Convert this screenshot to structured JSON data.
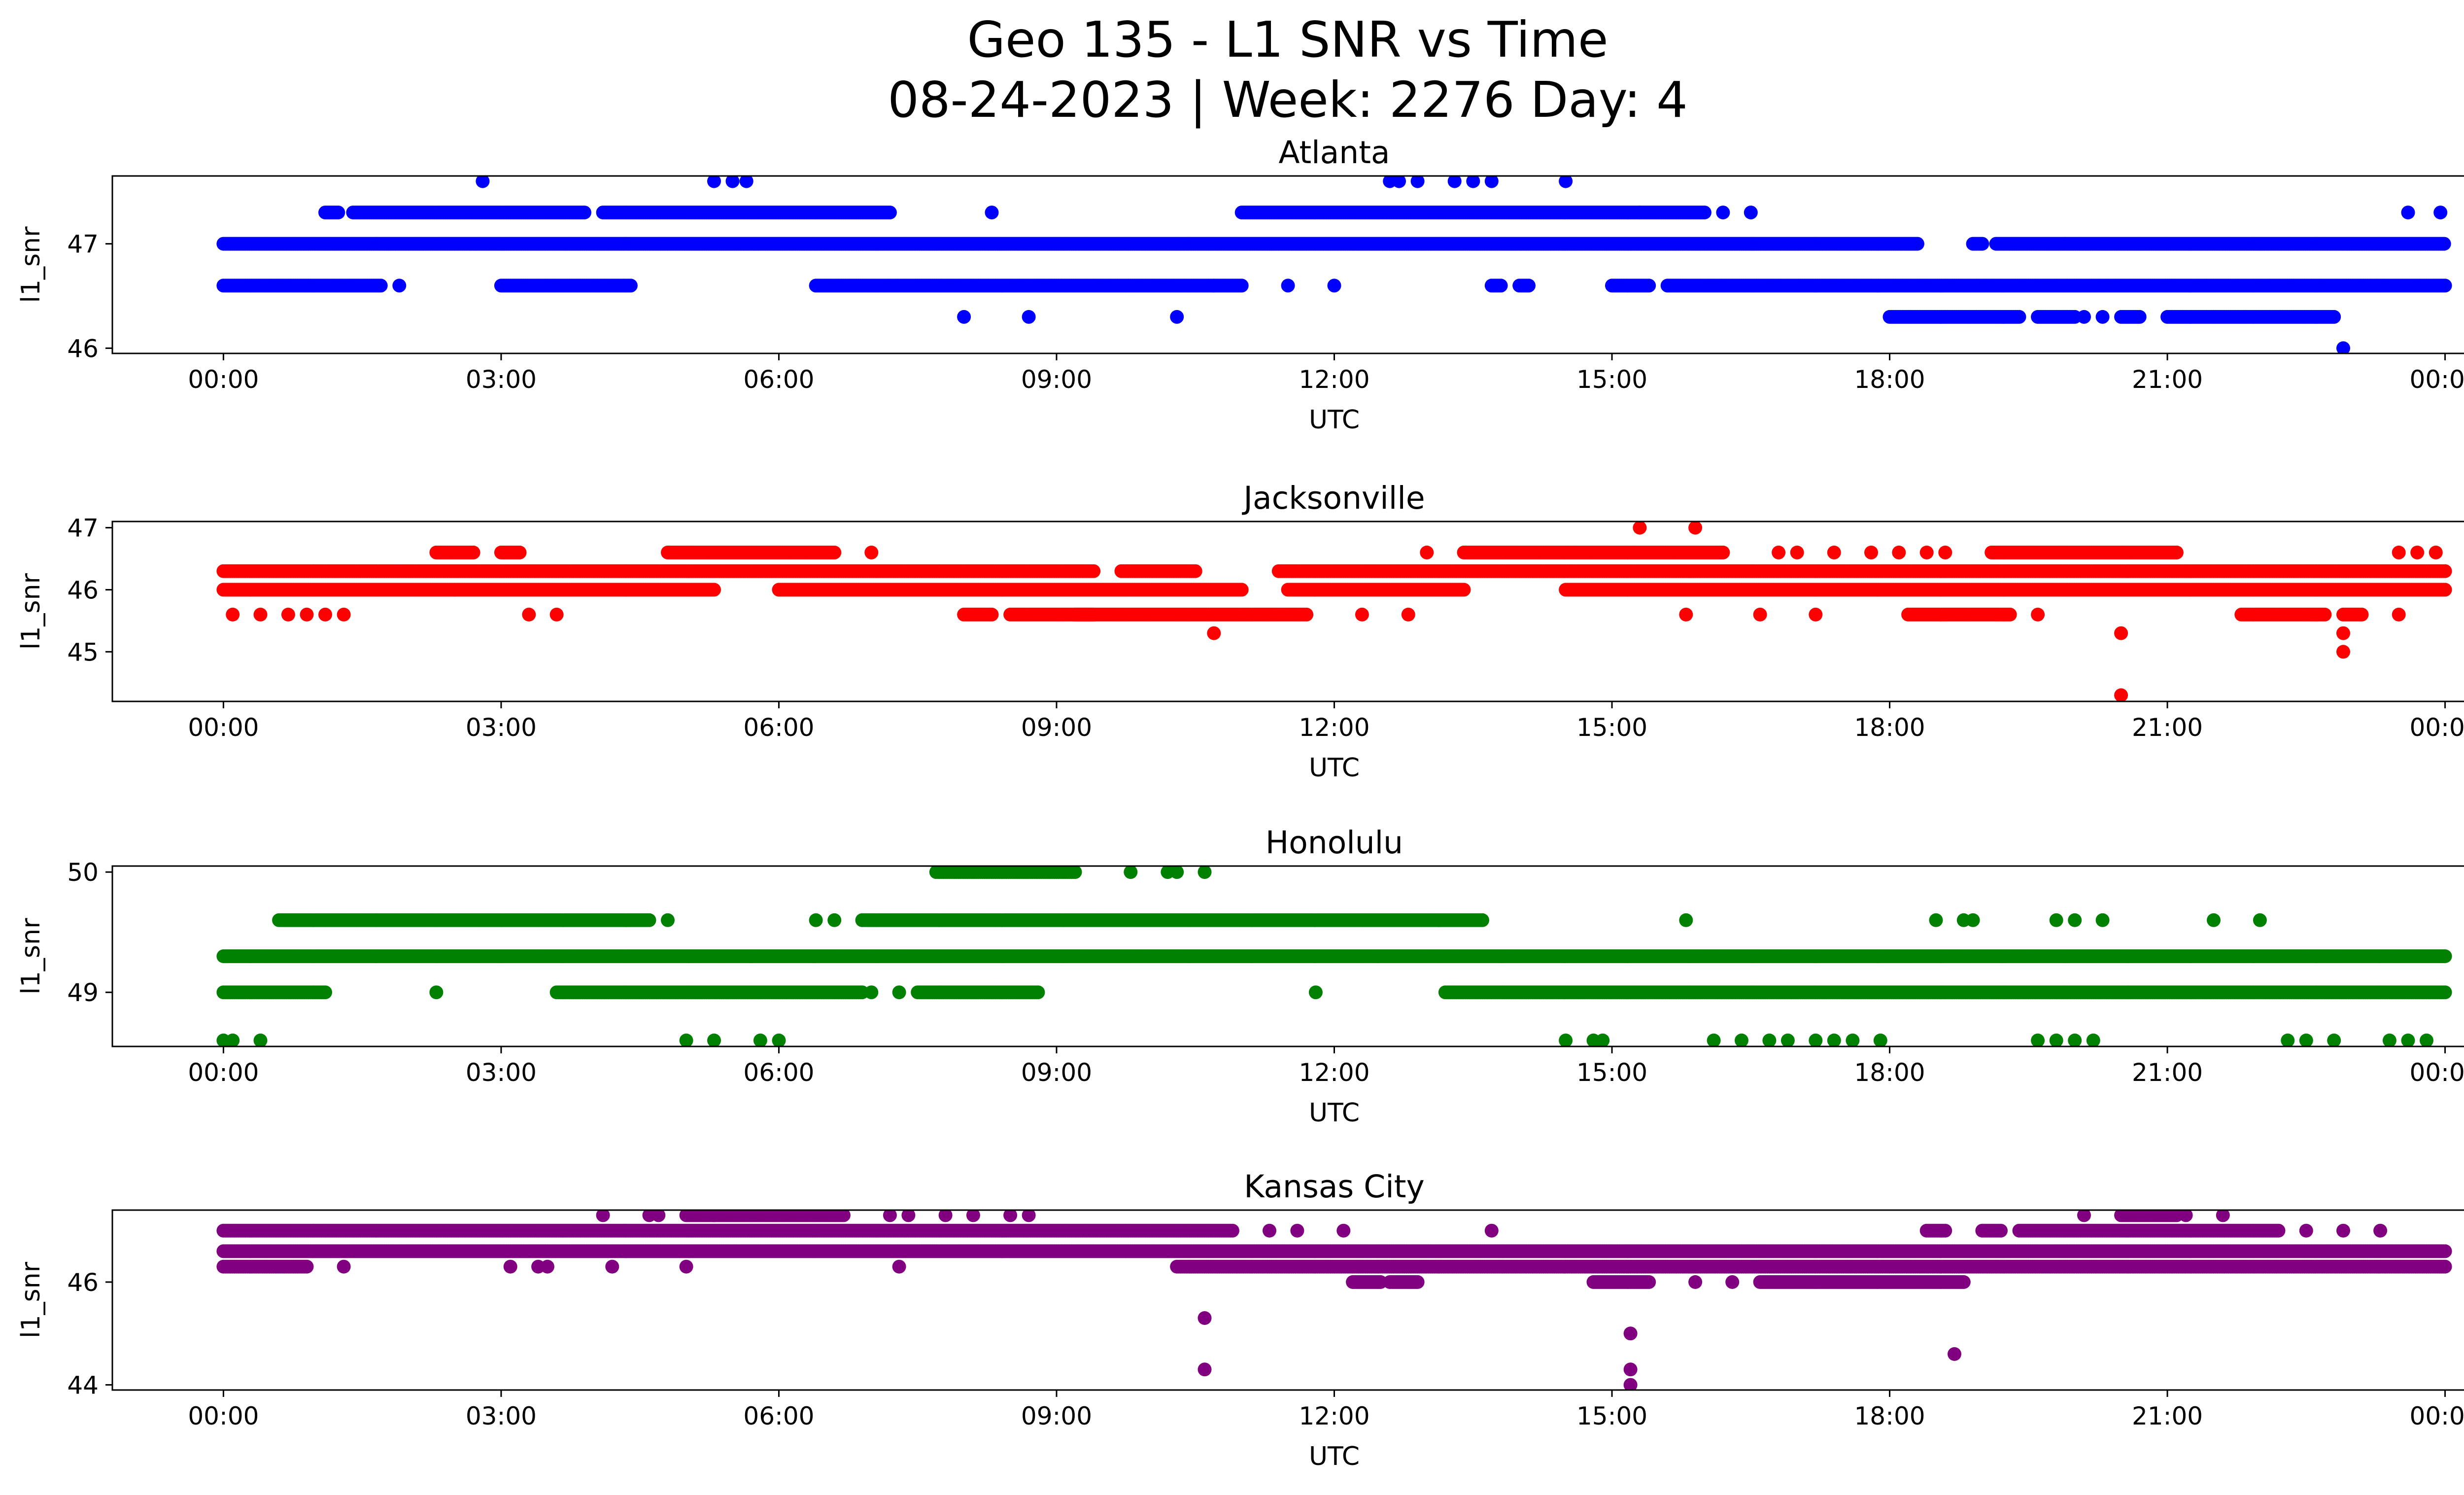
{
  "figure": {
    "title_line1": "Geo 135 - L1 SNR vs Time",
    "title_line2": "08-24-2023 | Week: 2276 Day: 4"
  },
  "chart_data": [
    {
      "type": "scatter",
      "title": "Atlanta",
      "xlabel": "UTC",
      "ylabel": "l1_snr",
      "color": "#0000ff",
      "xlim_hours": [
        -1.2,
        25.2
      ],
      "ylim": [
        45.95,
        47.65
      ],
      "yticks": [
        46,
        47
      ],
      "ytick_labels": [
        "46",
        "47"
      ],
      "xticks_hours": [
        0,
        3,
        6,
        9,
        12,
        15,
        18,
        21,
        24
      ],
      "xtick_labels": [
        "00:00",
        "03:00",
        "06:00",
        "09:00",
        "12:00",
        "15:00",
        "18:00",
        "21:00",
        "00:00"
      ],
      "series": [
        {
          "bands": [
            {
              "y": 47.0,
              "segments": [
                [
                  0.0,
                  18.3
                ],
                [
                  18.9,
                  19.0
                ],
                [
                  19.15,
                  24.0
                ]
              ]
            },
            {
              "y": 46.6,
              "segments": [
                [
                  0.0,
                  1.7
                ],
                [
                  3.0,
                  4.4
                ],
                [
                  6.4,
                  11.0
                ],
                [
                  13.7,
                  13.8
                ],
                [
                  14.0,
                  14.1
                ],
                [
                  15.0,
                  15.4
                ],
                [
                  15.6,
                  24.0
                ]
              ]
            },
            {
              "y": 47.3,
              "segments": [
                [
                  1.1,
                  1.25
                ],
                [
                  1.4,
                  3.9
                ],
                [
                  4.1,
                  7.2
                ],
                [
                  11.0,
                  15.3
                ],
                [
                  15.3,
                  16.0
                ]
              ]
            },
            {
              "y": 46.3,
              "segments": [
                [
                  18.0,
                  19.4
                ],
                [
                  19.6,
                  20.0
                ],
                [
                  20.5,
                  20.7
                ],
                [
                  21.0,
                  22.8
                ]
              ]
            }
          ],
          "points": [
            [
              1.9,
              46.6
            ],
            [
              2.8,
              47.6
            ],
            [
              5.3,
              47.6
            ],
            [
              5.5,
              47.6
            ],
            [
              5.65,
              47.6
            ],
            [
              8.3,
              47.3
            ],
            [
              8.0,
              46.3
            ],
            [
              8.7,
              46.3
            ],
            [
              10.3,
              46.3
            ],
            [
              10.7,
              46.6
            ],
            [
              11.5,
              46.6
            ],
            [
              12.0,
              46.6
            ],
            [
              12.6,
              47.6
            ],
            [
              12.7,
              47.6
            ],
            [
              12.9,
              47.6
            ],
            [
              13.3,
              47.6
            ],
            [
              13.5,
              47.6
            ],
            [
              13.7,
              47.6
            ],
            [
              14.5,
              47.6
            ],
            [
              16.2,
              47.3
            ],
            [
              16.5,
              47.3
            ],
            [
              20.1,
              46.3
            ],
            [
              20.3,
              46.3
            ],
            [
              22.9,
              46.0
            ],
            [
              23.6,
              47.3
            ],
            [
              23.95,
              47.3
            ]
          ]
        }
      ]
    },
    {
      "type": "scatter",
      "title": "Jacksonville",
      "xlabel": "UTC",
      "ylabel": "l1_snr",
      "color": "#ff0000",
      "xlim_hours": [
        -1.2,
        25.2
      ],
      "ylim": [
        44.2,
        47.1
      ],
      "yticks": [
        45,
        46,
        47
      ],
      "ytick_labels": [
        "45",
        "46",
        "47"
      ],
      "xticks_hours": [
        0,
        3,
        6,
        9,
        12,
        15,
        18,
        21,
        24
      ],
      "xtick_labels": [
        "00:00",
        "03:00",
        "06:00",
        "09:00",
        "12:00",
        "15:00",
        "18:00",
        "21:00",
        "00:00"
      ],
      "series": [
        {
          "bands": [
            {
              "y": 46.3,
              "segments": [
                [
                  0.0,
                  9.4
                ],
                [
                  9.7,
                  10.5
                ],
                [
                  11.4,
                  24.0
                ]
              ]
            },
            {
              "y": 46.0,
              "segments": [
                [
                  0.0,
                  2.5
                ],
                [
                  2.5,
                  5.3
                ],
                [
                  6.0,
                  11.0
                ],
                [
                  11.5,
                  13.4
                ],
                [
                  14.5,
                  24.0
                ]
              ]
            },
            {
              "y": 46.6,
              "segments": [
                [
                  2.3,
                  2.7
                ],
                [
                  3.0,
                  3.2
                ],
                [
                  4.8,
                  6.6
                ],
                [
                  13.4,
                  16.2
                ],
                [
                  19.1,
                  21.1
                ]
              ]
            },
            {
              "y": 45.6,
              "segments": [
                [
                  8.0,
                  8.3
                ],
                [
                  8.5,
                  9.4
                ],
                [
                  9.2,
                  11.7
                ],
                [
                  18.2,
                  19.3
                ],
                [
                  21.8,
                  22.7
                ],
                [
                  22.9,
                  23.1
                ]
              ]
            }
          ],
          "points": [
            [
              0.1,
              45.6
            ],
            [
              0.4,
              45.6
            ],
            [
              0.7,
              45.6
            ],
            [
              0.9,
              45.6
            ],
            [
              1.1,
              45.6
            ],
            [
              1.3,
              45.6
            ],
            [
              3.3,
              45.6
            ],
            [
              3.6,
              45.6
            ],
            [
              7.0,
              46.6
            ],
            [
              10.7,
              45.3
            ],
            [
              12.3,
              45.6
            ],
            [
              12.8,
              45.6
            ],
            [
              13.0,
              46.6
            ],
            [
              15.3,
              47.0
            ],
            [
              15.9,
              47.0
            ],
            [
              15.8,
              45.6
            ],
            [
              16.6,
              45.6
            ],
            [
              17.2,
              45.6
            ],
            [
              16.8,
              46.6
            ],
            [
              17.0,
              46.6
            ],
            [
              17.4,
              46.6
            ],
            [
              17.8,
              46.6
            ],
            [
              18.1,
              46.6
            ],
            [
              18.4,
              46.6
            ],
            [
              18.6,
              46.6
            ],
            [
              19.6,
              45.6
            ],
            [
              20.5,
              45.3
            ],
            [
              20.5,
              44.3
            ],
            [
              22.9,
              45.3
            ],
            [
              22.9,
              45.0
            ],
            [
              23.5,
              46.6
            ],
            [
              23.7,
              46.6
            ],
            [
              23.9,
              46.6
            ],
            [
              23.5,
              45.6
            ]
          ]
        }
      ]
    },
    {
      "type": "scatter",
      "title": "Honolulu",
      "xlabel": "UTC",
      "ylabel": "l1_snr",
      "color": "#008000",
      "xlim_hours": [
        -1.2,
        25.2
      ],
      "ylim": [
        48.55,
        50.05
      ],
      "yticks": [
        49,
        50
      ],
      "ytick_labels": [
        "49",
        "50"
      ],
      "xticks_hours": [
        0,
        3,
        6,
        9,
        12,
        15,
        18,
        21,
        24
      ],
      "xtick_labels": [
        "00:00",
        "03:00",
        "06:00",
        "09:00",
        "12:00",
        "15:00",
        "18:00",
        "21:00",
        "00:00"
      ],
      "series": [
        {
          "bands": [
            {
              "y": 49.3,
              "segments": [
                [
                  0.0,
                  24.0
                ]
              ]
            },
            {
              "y": 49.0,
              "segments": [
                [
                  0.0,
                  1.1
                ],
                [
                  3.6,
                  6.9
                ],
                [
                  7.5,
                  8.8
                ],
                [
                  13.2,
                  24.0
                ]
              ]
            },
            {
              "y": 49.6,
              "segments": [
                [
                  0.6,
                  4.6
                ],
                [
                  6.9,
                  13.6
                ]
              ]
            },
            {
              "y": 50.0,
              "segments": [
                [
                  7.7,
                  9.2
                ]
              ]
            }
          ],
          "points": [
            [
              0.0,
              48.6
            ],
            [
              0.1,
              48.6
            ],
            [
              0.4,
              48.6
            ],
            [
              2.3,
              49.0
            ],
            [
              4.8,
              49.6
            ],
            [
              5.0,
              48.6
            ],
            [
              5.3,
              48.6
            ],
            [
              5.8,
              48.6
            ],
            [
              6.0,
              48.6
            ],
            [
              6.4,
              49.6
            ],
            [
              6.6,
              49.6
            ],
            [
              7.0,
              49.0
            ],
            [
              7.3,
              49.0
            ],
            [
              9.8,
              50.0
            ],
            [
              10.2,
              50.0
            ],
            [
              10.3,
              50.0
            ],
            [
              10.6,
              50.0
            ],
            [
              11.8,
              49.0
            ],
            [
              14.5,
              48.6
            ],
            [
              14.8,
              48.6
            ],
            [
              14.9,
              48.6
            ],
            [
              15.8,
              49.6
            ],
            [
              16.1,
              48.6
            ],
            [
              16.4,
              48.6
            ],
            [
              16.7,
              48.6
            ],
            [
              16.9,
              48.6
            ],
            [
              17.2,
              48.6
            ],
            [
              17.4,
              48.6
            ],
            [
              17.6,
              48.6
            ],
            [
              17.9,
              48.6
            ],
            [
              18.5,
              49.6
            ],
            [
              18.8,
              49.6
            ],
            [
              18.9,
              49.6
            ],
            [
              19.6,
              48.6
            ],
            [
              19.8,
              48.6
            ],
            [
              20.0,
              48.6
            ],
            [
              20.2,
              48.6
            ],
            [
              19.8,
              49.6
            ],
            [
              20.0,
              49.6
            ],
            [
              20.3,
              49.6
            ],
            [
              21.5,
              49.6
            ],
            [
              22.0,
              49.6
            ],
            [
              22.3,
              48.6
            ],
            [
              22.5,
              48.6
            ],
            [
              22.8,
              48.6
            ],
            [
              23.4,
              48.6
            ],
            [
              23.6,
              48.6
            ],
            [
              23.8,
              48.6
            ]
          ]
        }
      ]
    },
    {
      "type": "scatter",
      "title": "Kansas City",
      "xlabel": "UTC",
      "ylabel": "l1_snr",
      "color": "#800080",
      "xlim_hours": [
        -1.2,
        25.2
      ],
      "ylim": [
        43.9,
        47.4
      ],
      "yticks": [
        44,
        46
      ],
      "ytick_labels": [
        "44",
        "46"
      ],
      "xticks_hours": [
        0,
        3,
        6,
        9,
        12,
        15,
        18,
        21,
        24
      ],
      "xtick_labels": [
        "00:00",
        "03:00",
        "06:00",
        "09:00",
        "12:00",
        "15:00",
        "18:00",
        "21:00",
        "00:00"
      ],
      "series": [
        {
          "bands": [
            {
              "y": 46.6,
              "segments": [
                [
                  0.0,
                  24.0
                ]
              ]
            },
            {
              "y": 47.0,
              "segments": [
                [
                  0.0,
                  10.9
                ],
                [
                  18.4,
                  18.6
                ],
                [
                  19.0,
                  19.2
                ],
                [
                  19.4,
                  22.2
                ]
              ]
            },
            {
              "y": 46.3,
              "segments": [
                [
                  0.0,
                  0.9
                ],
                [
                  10.3,
                  24.0
                ]
              ]
            },
            {
              "y": 47.3,
              "segments": [
                [
                  5.0,
                  6.7
                ],
                [
                  20.5,
                  21.1
                ]
              ]
            },
            {
              "y": 46.0,
              "segments": [
                [
                  12.2,
                  12.5
                ],
                [
                  12.6,
                  12.9
                ],
                [
                  14.8,
                  15.4
                ],
                [
                  16.6,
                  18.8
                ]
              ]
            }
          ],
          "points": [
            [
              1.3,
              46.3
            ],
            [
              3.1,
              46.3
            ],
            [
              3.4,
              46.3
            ],
            [
              3.5,
              46.3
            ],
            [
              4.1,
              47.3
            ],
            [
              4.2,
              46.3
            ],
            [
              4.6,
              47.3
            ],
            [
              4.7,
              47.3
            ],
            [
              5.0,
              46.3
            ],
            [
              5.3,
              47.3
            ],
            [
              7.2,
              47.3
            ],
            [
              7.3,
              46.3
            ],
            [
              7.4,
              47.3
            ],
            [
              7.8,
              47.3
            ],
            [
              8.1,
              47.3
            ],
            [
              8.5,
              47.3
            ],
            [
              8.7,
              47.3
            ],
            [
              10.6,
              45.3
            ],
            [
              10.6,
              44.3
            ],
            [
              11.3,
              47.0
            ],
            [
              11.6,
              47.0
            ],
            [
              12.1,
              47.0
            ],
            [
              13.7,
              47.0
            ],
            [
              15.2,
              45.0
            ],
            [
              15.2,
              44.3
            ],
            [
              15.2,
              44.0
            ],
            [
              15.9,
              46.0
            ],
            [
              16.3,
              46.0
            ],
            [
              18.7,
              44.6
            ],
            [
              20.1,
              47.3
            ],
            [
              21.2,
              47.3
            ],
            [
              21.6,
              47.3
            ],
            [
              22.5,
              47.0
            ],
            [
              22.9,
              47.0
            ],
            [
              23.3,
              47.0
            ]
          ]
        }
      ]
    }
  ]
}
